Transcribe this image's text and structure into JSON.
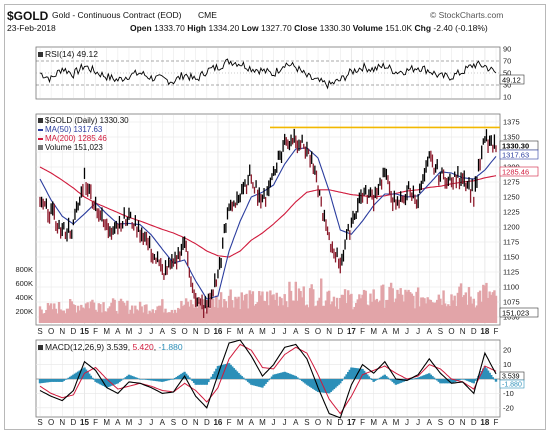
{
  "header": {
    "symbol": "$GOLD",
    "subtitle": "Gold - Continuous Contract (EOD)",
    "exchange": "CME",
    "watermark": "© StockCharts.com",
    "date": "23-Feb-2018",
    "open_label": "Open",
    "open": "1333.70",
    "high_label": "High",
    "high": "1334.20",
    "low_label": "Low",
    "low": "1327.70",
    "close_label": "Close",
    "close": "1330.30",
    "volume_label": "Volume",
    "volume": "151.0K",
    "chg_label": "Chg",
    "chg": "-2.40 (-0.18%)"
  },
  "rsi_panel": {
    "legend": "RSI(14) 49.12",
    "current_badge": "49.12",
    "y_ticks": [
      "90",
      "70",
      "50",
      "30",
      "10"
    ]
  },
  "price_panel": {
    "legend_title": "$GOLD (Daily) 1330.30",
    "legend_ma50": "MA(50) 1317.63",
    "legend_ma200": "MA(200) 1285.46",
    "legend_volume": "Volume 151,023",
    "price_badge": "1330.30",
    "ma50_badge": "1317.63",
    "ma200_badge": "1285.46",
    "volume_badge": "151,023",
    "y_ticks": [
      "1375",
      "1350",
      "1325",
      "1300",
      "1275",
      "1250",
      "1225",
      "1200",
      "1175",
      "1150",
      "1125",
      "1100",
      "1075",
      "1050"
    ],
    "volume_ticks": [
      "800K",
      "600K",
      "400K",
      "200K"
    ]
  },
  "macd_panel": {
    "legend_prefix": "MACD(12,26,9)",
    "legend_v1": "3.539",
    "legend_v2": "5.420",
    "legend_v3": "-1.880",
    "y_ticks": [
      "20",
      "10",
      "0",
      "-10",
      "-20"
    ],
    "badge_1": "3.539",
    "badge_2": "-1.880"
  },
  "x_axis": {
    "months": [
      "S",
      "O",
      "N",
      "D",
      "15",
      "F",
      "M",
      "A",
      "M",
      "J",
      "J",
      "A",
      "S",
      "O",
      "N",
      "D",
      "16",
      "F",
      "M",
      "A",
      "M",
      "J",
      "J",
      "A",
      "S",
      "O",
      "N",
      "D",
      "17",
      "F",
      "M",
      "A",
      "M",
      "J",
      "J",
      "A",
      "S",
      "O",
      "N",
      "D",
      "18",
      "F"
    ]
  },
  "colors": {
    "price_bars": "#8b1a2b",
    "ma50": "#2b3d9e",
    "ma200": "#d01a3c",
    "resistance": "#f2b800",
    "volume": "#e2a4a8",
    "macd_line": "#000000",
    "signal_line": "#d01a3c",
    "histogram": "#2c8fb8",
    "grid": "#e6e6e6"
  },
  "chart_data": [
    {
      "type": "line",
      "name": "RSI(14)",
      "y_range": [
        10,
        90
      ],
      "reference_lines": [
        70,
        30
      ],
      "x_months": [
        "S",
        "O",
        "N",
        "D",
        "15",
        "F",
        "M",
        "A",
        "M",
        "J",
        "J",
        "A",
        "S",
        "O",
        "N",
        "D",
        "16",
        "F",
        "M",
        "A",
        "M",
        "J",
        "J",
        "A",
        "S",
        "O",
        "N",
        "D",
        "17",
        "F",
        "M",
        "A",
        "M",
        "J",
        "J",
        "A",
        "S",
        "O",
        "N",
        "D",
        "18",
        "F"
      ],
      "values": [
        50,
        40,
        58,
        48,
        62,
        52,
        44,
        38,
        46,
        50,
        42,
        40,
        36,
        48,
        38,
        54,
        60,
        70,
        66,
        58,
        54,
        48,
        66,
        60,
        44,
        36,
        30,
        38,
        52,
        60,
        56,
        62,
        52,
        54,
        60,
        54,
        44,
        44,
        52,
        64,
        62,
        50
      ],
      "last_value": 49.12
    },
    {
      "type": "line",
      "name": "$GOLD (Daily)",
      "y_range": [
        1040,
        1385
      ],
      "x_months": [
        "S",
        "O",
        "N",
        "D",
        "15",
        "F",
        "M",
        "A",
        "M",
        "J",
        "J",
        "A",
        "S",
        "O",
        "N",
        "D",
        "16",
        "F",
        "M",
        "A",
        "M",
        "J",
        "J",
        "A",
        "S",
        "O",
        "N",
        "D",
        "17",
        "F",
        "M",
        "A",
        "M",
        "J",
        "J",
        "A",
        "S",
        "O",
        "N",
        "D",
        "18",
        "F"
      ],
      "series": [
        {
          "name": "$GOLD (Daily)",
          "values": [
            1240,
            1225,
            1190,
            1200,
            1280,
            1235,
            1195,
            1205,
            1215,
            1195,
            1160,
            1125,
            1135,
            1175,
            1075,
            1065,
            1120,
            1235,
            1250,
            1285,
            1240,
            1290,
            1340,
            1350,
            1330,
            1265,
            1175,
            1140,
            1210,
            1255,
            1250,
            1290,
            1230,
            1260,
            1250,
            1310,
            1285,
            1275,
            1285,
            1255,
            1345,
            1330
          ]
        },
        {
          "name": "MA(50)",
          "values": [
            1280,
            1245,
            1218,
            1205,
            1222,
            1240,
            1222,
            1205,
            1206,
            1204,
            1187,
            1163,
            1140,
            1145,
            1110,
            1080,
            1085,
            1160,
            1210,
            1250,
            1258,
            1270,
            1305,
            1330,
            1332,
            1315,
            1260,
            1195,
            1188,
            1210,
            1236,
            1255,
            1255,
            1250,
            1252,
            1272,
            1292,
            1290,
            1282,
            1280,
            1295,
            1317.63
          ]
        },
        {
          "name": "MA(200)",
          "values": [
            1300,
            1290,
            1278,
            1265,
            1250,
            1240,
            1232,
            1224,
            1216,
            1210,
            1203,
            1196,
            1190,
            1182,
            1172,
            1160,
            1152,
            1150,
            1160,
            1178,
            1190,
            1205,
            1222,
            1242,
            1258,
            1262,
            1262,
            1258,
            1254,
            1252,
            1250,
            1252,
            1256,
            1260,
            1262,
            1266,
            1268,
            1272,
            1275,
            1277,
            1282,
            1285.46
          ]
        }
      ],
      "resistance_level": 1366,
      "last_close": 1330.3
    },
    {
      "type": "bar",
      "name": "Volume",
      "y_range": [
        0,
        900000
      ],
      "values": [
        160000,
        150000,
        170000,
        180000,
        200000,
        220000,
        190000,
        180000,
        170000,
        160000,
        170000,
        180000,
        160000,
        190000,
        210000,
        180000,
        250000,
        300000,
        260000,
        240000,
        250000,
        280000,
        300000,
        310000,
        290000,
        330000,
        310000,
        250000,
        260000,
        240000,
        280000,
        290000,
        300000,
        270000,
        260000,
        320000,
        300000,
        280000,
        300000,
        260000,
        330000,
        240000
      ],
      "last_value": 151023
    },
    {
      "type": "line",
      "name": "MACD(12,26,9)",
      "y_range": [
        -25,
        25
      ],
      "series": [
        {
          "name": "MACD",
          "values": [
            -8,
            -12,
            -15,
            -8,
            12,
            6,
            -6,
            -10,
            -2,
            -3,
            -6,
            -10,
            -9,
            2,
            -12,
            -20,
            3,
            25,
            27,
            16,
            2,
            10,
            22,
            24,
            14,
            -6,
            -24,
            -27,
            -4,
            10,
            4,
            12,
            0,
            -1,
            3,
            14,
            4,
            -3,
            -2,
            -10,
            18,
            3.539
          ]
        },
        {
          "name": "Signal",
          "values": [
            -5,
            -10,
            -13,
            -11,
            4,
            8,
            0,
            -7,
            -5,
            -3,
            -5,
            -8,
            -9,
            -3,
            -8,
            -16,
            -6,
            14,
            24,
            20,
            8,
            7,
            17,
            22,
            18,
            3,
            -14,
            -24,
            -12,
            3,
            6,
            9,
            4,
            0,
            2,
            10,
            7,
            0,
            -2,
            -7,
            9,
            5.42
          ]
        },
        {
          "name": "Histogram",
          "values": [
            -3,
            -2,
            -2,
            3,
            8,
            -2,
            -6,
            -3,
            3,
            0,
            -1,
            -2,
            0,
            5,
            -4,
            -4,
            9,
            11,
            3,
            -4,
            -6,
            3,
            5,
            2,
            -4,
            -9,
            -10,
            -3,
            8,
            7,
            -2,
            3,
            -4,
            -1,
            1,
            4,
            -3,
            -3,
            0,
            -3,
            9,
            -1.88
          ]
        }
      ]
    }
  ]
}
